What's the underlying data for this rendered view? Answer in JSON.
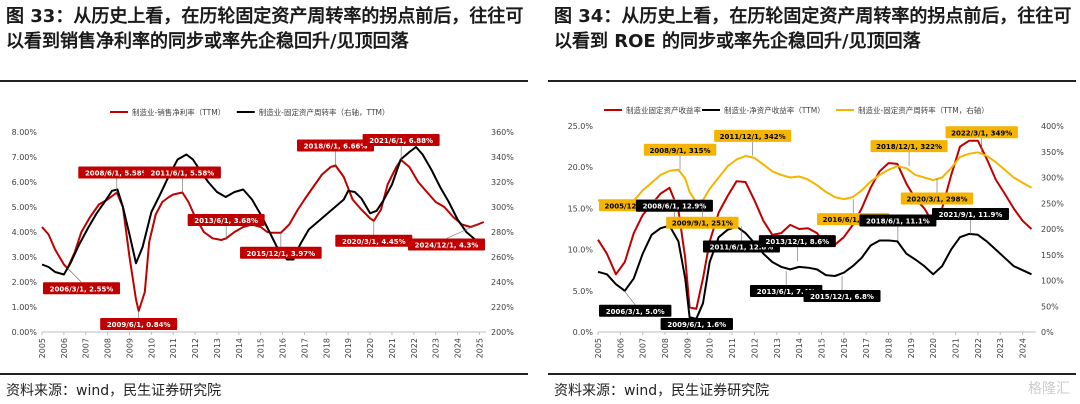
{
  "chart_data": [
    {
      "type": "line",
      "title": "图 33：从历史上看，在历轮固定资产周转率的拐点前后，往往可以看到销售净利率的同步或率先企稳回升/见顶回落",
      "source": "资料来源：wind，民生证券研究院",
      "x_ticks": [
        "2005",
        "2006",
        "2007",
        "2008",
        "2009",
        "2010",
        "2011",
        "2012",
        "2013",
        "2014",
        "2015",
        "2016",
        "2017",
        "2018",
        "2019",
        "2020",
        "2021",
        "2022",
        "2023",
        "2024",
        "2025"
      ],
      "y_left_ticks": [
        "0.00%",
        "1.00%",
        "2.00%",
        "3.00%",
        "4.00%",
        "5.00%",
        "6.00%",
        "7.00%",
        "8.00%"
      ],
      "y_right_ticks": [
        "200%",
        "220%",
        "240%",
        "260%",
        "280%",
        "300%",
        "320%",
        "340%",
        "360%"
      ],
      "ylim_left": [
        0,
        8
      ],
      "ylim_right": [
        200,
        360
      ],
      "xlim": [
        2005,
        2025.3
      ],
      "grid": false,
      "legend_position": "top",
      "series": [
        {
          "name": "制造业-销售净利率（TTM）",
          "axis": "left",
          "color": "#c00000",
          "x": [
            2005,
            2005.3,
            2005.6,
            2006.0,
            2006.17,
            2006.5,
            2006.8,
            2007.2,
            2007.6,
            2008.0,
            2008.42,
            2008.7,
            2009.0,
            2009.3,
            2009.42,
            2009.7,
            2009.9,
            2010.2,
            2010.5,
            2010.8,
            2011.0,
            2011.42,
            2011.7,
            2012.0,
            2012.4,
            2012.8,
            2013.2,
            2013.42,
            2013.8,
            2014.2,
            2014.6,
            2015.0,
            2015.3,
            2015.5,
            2015.92,
            2016.3,
            2016.7,
            2017.0,
            2017.4,
            2017.8,
            2018.2,
            2018.42,
            2018.8,
            2019.2,
            2019.6,
            2020.0,
            2020.17,
            2020.5,
            2020.8,
            2021.2,
            2021.42,
            2021.8,
            2022.2,
            2022.6,
            2023.0,
            2023.4,
            2023.8,
            2024.2,
            2024.6,
            2024.92,
            2025.2
          ],
          "values": [
            4.2,
            3.9,
            3.3,
            2.7,
            2.55,
            3.2,
            4.0,
            4.6,
            5.1,
            5.3,
            5.58,
            5.0,
            3.0,
            1.3,
            0.84,
            1.6,
            3.6,
            4.7,
            5.2,
            5.4,
            5.5,
            5.58,
            5.2,
            4.6,
            4.0,
            3.75,
            3.68,
            3.75,
            4.0,
            4.2,
            4.3,
            4.2,
            4.0,
            3.97,
            3.97,
            4.3,
            4.9,
            5.3,
            5.8,
            6.3,
            6.6,
            6.66,
            6.2,
            5.3,
            4.9,
            4.55,
            4.45,
            4.9,
            5.9,
            6.6,
            6.88,
            6.6,
            6.0,
            5.6,
            5.2,
            5.0,
            4.6,
            4.3,
            4.2,
            4.3,
            4.4
          ]
        },
        {
          "name": "制造业-固定资产周转率（右轴，TTM）",
          "axis": "right",
          "color": "#000000",
          "x": [
            2005,
            2005.3,
            2005.6,
            2006.0,
            2006.3,
            2006.7,
            2007.1,
            2007.5,
            2007.9,
            2008.2,
            2008.45,
            2008.7,
            2009.0,
            2009.3,
            2009.6,
            2010.0,
            2010.4,
            2010.8,
            2011.2,
            2011.6,
            2011.9,
            2012.2,
            2012.6,
            2013.0,
            2013.4,
            2013.8,
            2014.2,
            2014.6,
            2015.0,
            2015.4,
            2015.8,
            2016.2,
            2016.5,
            2016.8,
            2017.2,
            2017.6,
            2018.0,
            2018.4,
            2018.8,
            2019.0,
            2019.3,
            2019.6,
            2020.0,
            2020.3,
            2020.6,
            2021.0,
            2021.4,
            2021.8,
            2022.1,
            2022.4,
            2022.8,
            2023.2,
            2023.6,
            2024.0,
            2024.4,
            2024.8,
            2025.2
          ],
          "values": [
            254,
            252,
            248,
            246,
            255,
            270,
            283,
            295,
            305,
            313,
            314,
            300,
            278,
            255,
            268,
            296,
            310,
            325,
            338,
            342,
            338,
            330,
            320,
            312,
            308,
            312,
            314,
            306,
            294,
            280,
            266,
            258,
            258,
            270,
            282,
            288,
            294,
            300,
            306,
            313,
            312,
            307,
            295,
            297,
            305,
            318,
            338,
            344,
            348,
            342,
            330,
            316,
            304,
            290,
            280,
            274,
            273
          ]
        }
      ],
      "annotations": [
        {
          "label": "2006/3/1, 2.55%",
          "x": 2006.17,
          "y": 2.55,
          "side": "below"
        },
        {
          "label": "2008/6/1, 5.58%",
          "x": 2008.42,
          "y": 5.58,
          "side": "above"
        },
        {
          "label": "2009/6/1, 0.84%",
          "x": 2009.42,
          "y": 0.84,
          "side": "below"
        },
        {
          "label": "2011/6/1, 5.58%",
          "x": 2011.42,
          "y": 5.58,
          "side": "above"
        },
        {
          "label": "2013/6/1, 3.68%",
          "x": 2013.42,
          "y": 3.68,
          "side": "above"
        },
        {
          "label": "2015/12/1, 3.97%",
          "x": 2015.92,
          "y": 3.97,
          "side": "below"
        },
        {
          "label": "2018/6/1, 6.66%",
          "x": 2018.42,
          "y": 6.66,
          "side": "above"
        },
        {
          "label": "2020/3/1, 4.45%",
          "x": 2020.17,
          "y": 4.45,
          "side": "below"
        },
        {
          "label": "2021/6/1, 6.88%",
          "x": 2021.42,
          "y": 6.88,
          "side": "above"
        },
        {
          "label": "2024/12/1, 4.3%",
          "x": 2024.92,
          "y": 4.3,
          "side": "below"
        }
      ]
    },
    {
      "type": "line",
      "title": "图 34：从历史上看，在历轮固定资产周转率的拐点前后，往往可以看到 ROE 的同步或率先企稳回升/见顶回落",
      "source": "资料来源：wind，民生证券研究院",
      "watermark": "格隆汇",
      "x_ticks": [
        "2005",
        "2006",
        "2007",
        "2008",
        "2009",
        "2010",
        "2011",
        "2012",
        "2013",
        "2014",
        "2015",
        "2016",
        "2017",
        "2018",
        "2019",
        "2020",
        "2021",
        "2022",
        "2023",
        "2024"
      ],
      "y_left_ticks": [
        "0.0%",
        "5.0%",
        "10.0%",
        "15.0%",
        "20.0%",
        "25.0%"
      ],
      "y_right_ticks": [
        "0%",
        "50%",
        "100%",
        "150%",
        "200%",
        "250%",
        "300%",
        "350%",
        "400%"
      ],
      "ylim_left": [
        0,
        25
      ],
      "ylim_right": [
        0,
        400
      ],
      "xlim": [
        2005,
        2024.6
      ],
      "grid": false,
      "legend_position": "top",
      "series": [
        {
          "name": "制造业固定资产收益率",
          "axis": "left",
          "color": "#c00000",
          "x": [
            2005,
            2005.4,
            2005.8,
            2006.2,
            2006.6,
            2007.0,
            2007.4,
            2007.8,
            2008.2,
            2008.6,
            2008.9,
            2009.1,
            2009.4,
            2009.7,
            2010.0,
            2010.4,
            2010.8,
            2011.2,
            2011.6,
            2012.0,
            2012.4,
            2012.8,
            2013.2,
            2013.6,
            2014.0,
            2014.4,
            2014.8,
            2015.2,
            2015.6,
            2016.0,
            2016.4,
            2016.8,
            2017.2,
            2017.6,
            2018.0,
            2018.4,
            2018.8,
            2019.2,
            2019.6,
            2020.0,
            2020.4,
            2020.8,
            2021.2,
            2021.6,
            2022.0,
            2022.4,
            2022.8,
            2023.2,
            2023.6,
            2024.0,
            2024.4
          ],
          "values": [
            11.2,
            9.5,
            7.0,
            8.5,
            12.0,
            14.2,
            15.5,
            16.8,
            17.5,
            14.8,
            9.0,
            3.0,
            2.8,
            6.5,
            11.0,
            14.5,
            16.5,
            18.3,
            18.2,
            16.0,
            13.5,
            11.8,
            12.0,
            13.0,
            12.5,
            12.6,
            12.0,
            10.6,
            10.6,
            11.5,
            13.0,
            15.0,
            17.5,
            19.5,
            20.5,
            20.4,
            18.0,
            16.2,
            15.0,
            13.2,
            15.0,
            19.0,
            22.5,
            23.2,
            23.2,
            21.0,
            18.5,
            16.8,
            15.0,
            13.5,
            12.5
          ]
        },
        {
          "name": "制造业-净资产收益率（TTM）",
          "axis": "left",
          "color": "#000000",
          "x": [
            2005,
            2005.4,
            2005.8,
            2006.2,
            2006.6,
            2007.0,
            2007.4,
            2007.8,
            2008.2,
            2008.6,
            2008.9,
            2009.1,
            2009.4,
            2009.7,
            2010.0,
            2010.4,
            2010.8,
            2011.2,
            2011.6,
            2012.0,
            2012.4,
            2012.8,
            2013.2,
            2013.6,
            2014.0,
            2014.4,
            2014.8,
            2015.2,
            2015.6,
            2016.0,
            2016.4,
            2016.8,
            2017.2,
            2017.6,
            2018.0,
            2018.4,
            2018.8,
            2019.2,
            2019.6,
            2020.0,
            2020.4,
            2020.8,
            2021.2,
            2021.6,
            2022.0,
            2022.4,
            2022.8,
            2023.2,
            2023.6,
            2024.0,
            2024.4
          ],
          "values": [
            7.3,
            7.0,
            5.8,
            5.0,
            6.5,
            9.5,
            11.8,
            12.6,
            12.9,
            11.0,
            6.5,
            1.8,
            1.6,
            3.5,
            8.5,
            11.5,
            12.4,
            12.8,
            12.0,
            10.8,
            9.5,
            8.5,
            7.9,
            7.6,
            7.9,
            7.8,
            7.6,
            6.9,
            6.8,
            7.2,
            8.0,
            9.0,
            10.5,
            11.1,
            11.1,
            11.0,
            9.5,
            8.8,
            8.0,
            7.0,
            8.0,
            10.0,
            11.5,
            11.9,
            11.8,
            11.0,
            10.0,
            9.0,
            8.0,
            7.5,
            7.0
          ]
        },
        {
          "name": "制造业-固定资产周转率（TTM，右轴）",
          "axis": "right",
          "color": "#f4b400",
          "x": [
            2005,
            2005.4,
            2005.8,
            2006.2,
            2006.6,
            2007.0,
            2007.4,
            2007.8,
            2008.2,
            2008.6,
            2008.9,
            2009.1,
            2009.4,
            2009.7,
            2010.0,
            2010.4,
            2010.8,
            2011.2,
            2011.6,
            2012.0,
            2012.4,
            2012.8,
            2013.2,
            2013.6,
            2014.0,
            2014.4,
            2014.8,
            2015.2,
            2015.6,
            2016.0,
            2016.4,
            2016.8,
            2017.2,
            2017.6,
            2018.0,
            2018.4,
            2018.8,
            2019.2,
            2019.6,
            2020.0,
            2020.4,
            2020.8,
            2021.2,
            2021.6,
            2022.0,
            2022.4,
            2022.8,
            2023.2,
            2023.6,
            2024.0,
            2024.4
          ],
          "values": [
            256,
            254,
            250,
            246,
            255,
            275,
            290,
            305,
            313,
            315,
            298,
            272,
            252,
            256,
            278,
            300,
            322,
            335,
            342,
            338,
            325,
            312,
            305,
            300,
            302,
            296,
            285,
            272,
            262,
            258,
            262,
            275,
            292,
            305,
            315,
            322,
            318,
            305,
            300,
            295,
            300,
            318,
            340,
            346,
            349,
            342,
            330,
            315,
            300,
            290,
            280
          ]
        }
      ],
      "annotations": [
        {
          "label": "2005/12/1, 246%",
          "x": 2005.92,
          "y_right": 246,
          "side": "left"
        },
        {
          "label": "2006/3/1, 5.0%",
          "x": 2006.17,
          "y": 5.0,
          "side": "below"
        },
        {
          "label": "2008/9/1, 315%",
          "x": 2008.67,
          "y_right": 315,
          "side": "above"
        },
        {
          "label": "2008/6/1, 12.9%",
          "x": 2008.42,
          "y": 12.9,
          "side": "above"
        },
        {
          "label": "2009/9/1, 251%",
          "x": 2009.67,
          "y_right": 251,
          "side": "below"
        },
        {
          "label": "2009/6/1, 1.6%",
          "x": 2009.42,
          "y": 1.6,
          "side": "below"
        },
        {
          "label": "2011/12/1, 342%",
          "x": 2011.92,
          "y_right": 342,
          "side": "above"
        },
        {
          "label": "2011/6/1, 12.8%",
          "x": 2011.42,
          "y": 12.8,
          "side": "below"
        },
        {
          "label": "2013/12/1, 8.6%",
          "x": 2013.92,
          "y": 8.6,
          "side": "above"
        },
        {
          "label": "2013/6/1, 7.4%",
          "x": 2013.42,
          "y": 7.4,
          "side": "below"
        },
        {
          "label": "2015/12/1, 6.8%",
          "x": 2015.92,
          "y": 6.8,
          "side": "below"
        },
        {
          "label": "2016/6/1, 258%",
          "x": 2016.42,
          "y_right": 258,
          "side": "below"
        },
        {
          "label": "2018/12/1, 322%",
          "x": 2018.92,
          "y_right": 322,
          "side": "above"
        },
        {
          "label": "2018/6/1, 11.1%",
          "x": 2018.42,
          "y": 11.1,
          "side": "above"
        },
        {
          "label": "2020/3/1, 298%",
          "x": 2020.17,
          "y_right": 298,
          "side": "below"
        },
        {
          "label": "2021/9/1, 11.9%",
          "x": 2021.67,
          "y": 11.9,
          "side": "above"
        },
        {
          "label": "2022/3/1, 349%",
          "x": 2022.17,
          "y_right": 349,
          "side": "above"
        }
      ]
    }
  ]
}
